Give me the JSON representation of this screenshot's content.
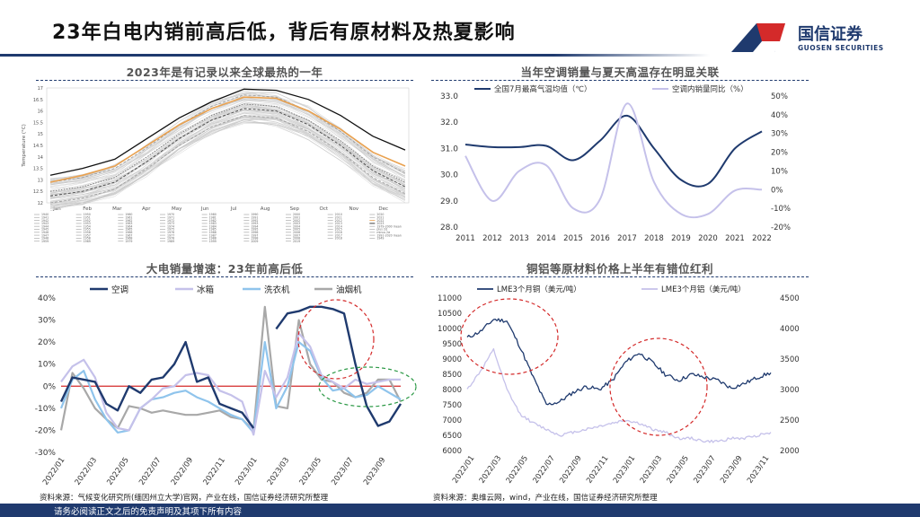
{
  "title": "23年白电内销前高后低，背后有原材料及热夏影响",
  "logo": {
    "cn": "国信证券",
    "en": "GUOSEN SECURITIES"
  },
  "sections": {
    "tl": "2023年是有记录以来全球最热的一年",
    "tr": "当年空调销量与夏天高温存在明显关联",
    "bl": "大电销量增速：23年前高后低",
    "br": "铜铝等原材料价格上半年有错位红利"
  },
  "sources": {
    "left": "资料来源：气候变化研究所(缅因州立大学)官网，产业在线，国信证券经济研究所整理",
    "right": "资料来源：奥维云网，wind，产业在线，国信证券经济研究所整理"
  },
  "footer": "请务必阅读正文之后的免责声明及其项下所有内容",
  "colors": {
    "navy": "#1f3a6e",
    "lavender": "#c5c1ea",
    "skyblue": "#8fc4ec",
    "gray": "#a8a8a8",
    "red": "#d42a2a",
    "green": "#2e9a48",
    "orange": "#e9a14f"
  },
  "chart_data": [
    {
      "id": "temperature",
      "type": "line",
      "title": "2023年是有记录以来全球最热的一年",
      "ylabel": "Temperature (°C)",
      "y_ticks": [
        "17",
        "16.5",
        "16",
        "15.5",
        "15",
        "14.5",
        "14",
        "13.5",
        "13",
        "12.5",
        "12"
      ],
      "ylim": [
        12,
        17
      ],
      "x_ticks": [
        "Jan",
        "Feb",
        "Mar",
        "Apr",
        "May",
        "Jun",
        "Jul",
        "Aug",
        "Sep",
        "Oct",
        "Nov",
        "Dec"
      ],
      "legend_years": [
        "1940",
        "1950",
        "1960",
        "1970",
        "1980",
        "1990",
        "2000",
        "2010",
        "2020",
        "1941",
        "1951",
        "1961",
        "1971",
        "1981",
        "1991",
        "2001",
        "2011",
        "2021",
        "1942",
        "1952",
        "1962",
        "1972",
        "1982",
        "1992",
        "2002",
        "2012",
        "2022",
        "1943",
        "1953",
        "1963",
        "1973",
        "1983",
        "1993",
        "2003",
        "2013",
        "2023",
        "1944",
        "1954",
        "1964",
        "1974",
        "1984",
        "1994",
        "2004",
        "2014",
        "1979-2000 mean",
        "1945",
        "1955",
        "1965",
        "1975",
        "1985",
        "1995",
        "2005",
        "2015",
        "plus 2σ",
        "1946",
        "1956",
        "1966",
        "1976",
        "1986",
        "1996",
        "2006",
        "2016",
        "minus 2σ",
        "1947",
        "1957",
        "1967",
        "1977",
        "1987",
        "1997",
        "2007",
        "2017",
        "1991-2020 mean",
        "1948",
        "1958",
        "1968",
        "1978",
        "1988",
        "1998",
        "2008",
        "2018",
        "1949",
        "1959",
        "1969",
        "1979",
        "1989",
        "1999",
        "2009",
        "2019"
      ],
      "series": [
        {
          "name": "2023",
          "color": "#111111",
          "values": [
            13.2,
            13.5,
            13.9,
            14.8,
            15.7,
            16.4,
            16.95,
            16.9,
            16.5,
            15.8,
            14.9,
            14.3
          ]
        },
        {
          "name": "2022",
          "color": "#e9a14f",
          "values": [
            12.9,
            13.2,
            13.6,
            14.5,
            15.4,
            16.1,
            16.6,
            16.55,
            16.0,
            15.2,
            14.2,
            13.6
          ]
        },
        {
          "name": "1979-2000 mean",
          "color": "#444444",
          "values": [
            12.3,
            12.5,
            12.9,
            13.8,
            14.8,
            15.6,
            16.1,
            16.0,
            15.4,
            14.5,
            13.4,
            12.7
          ]
        },
        {
          "name": "1991-2020 mean",
          "color": "#777777",
          "values": [
            12.5,
            12.7,
            13.1,
            14.0,
            15.0,
            15.8,
            16.3,
            16.2,
            15.6,
            14.7,
            13.6,
            12.9
          ]
        },
        {
          "name": "plus 2σ",
          "color": "#999999",
          "values": [
            12.9,
            13.1,
            13.5,
            14.4,
            15.4,
            16.2,
            16.7,
            16.6,
            16.0,
            15.1,
            14.0,
            13.3
          ]
        },
        {
          "name": "minus 2σ",
          "color": "#999999",
          "values": [
            12.0,
            12.2,
            12.6,
            13.5,
            14.5,
            15.3,
            15.8,
            15.7,
            15.1,
            14.2,
            13.1,
            12.4
          ]
        }
      ]
    },
    {
      "id": "ac_vs_temp",
      "type": "line",
      "title": "当年空调销量与夏天高温存在明显关联",
      "categories": [
        "2011",
        "2012",
        "2013",
        "2014",
        "2015",
        "2016",
        "2017",
        "2018",
        "2019",
        "2020",
        "2021",
        "2022"
      ],
      "y_left_ticks": [
        "33.0",
        "32.0",
        "31.0",
        "30.0",
        "29.0",
        "28.0"
      ],
      "y_left_lim": [
        28,
        33
      ],
      "y_right_ticks": [
        "50%",
        "40%",
        "30%",
        "20%",
        "10%",
        "0%",
        "-10%",
        "-20%"
      ],
      "y_right_lim": [
        -20,
        50
      ],
      "series": [
        {
          "name": "全国7月最高气温均值（℃）",
          "axis": "left",
          "color": "#1f3a6e",
          "values": [
            31.15,
            31.05,
            31.05,
            31.1,
            30.55,
            31.3,
            32.25,
            31.0,
            29.8,
            29.65,
            31.0,
            31.65
          ]
        },
        {
          "name": "空调内销量同比（%）",
          "axis": "right",
          "color": "#c5c1ea",
          "values": [
            18,
            -6,
            10,
            13,
            -10,
            -5,
            46,
            4,
            -13,
            -13,
            -0.5,
            0
          ]
        }
      ]
    },
    {
      "id": "appliance_growth",
      "type": "line",
      "title": "大电销量增速：23年前高后低",
      "x_ticks": [
        "2022/01",
        "2022/03",
        "2022/05",
        "2022/07",
        "2022/09",
        "2022/11",
        "2023/01",
        "2023/03",
        "2023/05",
        "2023/07",
        "2023/09"
      ],
      "y_ticks": [
        "40%",
        "30%",
        "20%",
        "10%",
        "0%",
        "-10%",
        "-20%",
        "-30%"
      ],
      "ylim": [
        -30,
        40
      ],
      "series": [
        {
          "name": "空调",
          "color": "#1f3a6e",
          "values": [
            -7,
            4,
            3,
            2,
            -8,
            -11,
            0,
            -3,
            3,
            4,
            10,
            20,
            2,
            4,
            -8,
            -10,
            -12,
            -19,
            null,
            26,
            33,
            34,
            36,
            36,
            35,
            33,
            10,
            -9,
            -18,
            -16,
            -8
          ]
        },
        {
          "name": "冰箱",
          "color": "#c5c1ea",
          "values": [
            2,
            9,
            12,
            4,
            -12,
            -19,
            -20,
            -10,
            -6,
            -1,
            0,
            5,
            6,
            5,
            -2,
            -4,
            -7,
            -22,
            7,
            -5,
            4,
            24,
            18,
            5,
            2,
            -1,
            3,
            1,
            2,
            3,
            3
          ]
        },
        {
          "name": "洗衣机",
          "color": "#8fc4ec",
          "values": [
            -10,
            3,
            7,
            -6,
            -15,
            -21,
            -20,
            -10,
            -6,
            -5,
            -3,
            -2,
            -5,
            -7,
            -10,
            -13,
            -15,
            -21,
            20,
            -10,
            0,
            20,
            16,
            4,
            -2,
            -1,
            -5,
            -4,
            0,
            -3,
            -6
          ]
        },
        {
          "name": "油烟机",
          "color": "#a8a8a8",
          "values": [
            -20,
            6,
            -1,
            -10,
            -15,
            -19,
            -9,
            -10,
            -12,
            -11,
            -12,
            -13,
            -13,
            -12,
            -11,
            -14,
            -15,
            -20,
            36,
            -9,
            -10,
            30,
            10,
            3,
            2,
            -3,
            -5,
            -3,
            3,
            3,
            -7
          ]
        }
      ],
      "annotations": [
        "red dashed ellipse around 2023/03-2023/07 peak",
        "green dashed ellipse around 2023/07-2023/09"
      ]
    },
    {
      "id": "metal_prices",
      "type": "line",
      "title": "铜铝等原材料价格上半年有错位红利",
      "x_ticks": [
        "2022/01",
        "2022/03",
        "2022/05",
        "2022/07",
        "2022/09",
        "2022/11",
        "2023/01",
        "2023/03",
        "2023/05",
        "2023/07",
        "2023/09",
        "2023/11"
      ],
      "y_left_ticks": [
        "11000",
        "10500",
        "10000",
        "9500",
        "9000",
        "8500",
        "8000",
        "7500",
        "7000",
        "6500",
        "6000"
      ],
      "y_left_lim": [
        6000,
        11000
      ],
      "y_right_ticks": [
        "4500",
        "4000",
        "3500",
        "3000",
        "2500",
        "2000"
      ],
      "y_right_lim": [
        2000,
        4500
      ],
      "series": [
        {
          "name": "LME3个月铜（美元/吨）",
          "axis": "left",
          "color": "#1f3a6e",
          "values": [
            9700,
            9900,
            10300,
            10250,
            9400,
            8400,
            7500,
            7600,
            7900,
            8100,
            8000,
            8300,
            8900,
            9200,
            8900,
            8500,
            8300,
            8500,
            8400,
            8300,
            8050,
            8200,
            8400,
            8550
          ]
        },
        {
          "name": "LME3个月铝（美元/吨）",
          "axis": "right",
          "color": "#c5c1ea",
          "values": [
            3000,
            3300,
            3650,
            3000,
            2600,
            2450,
            2350,
            2250,
            2300,
            2350,
            2400,
            2450,
            2500,
            2450,
            2350,
            2300,
            2200,
            2200,
            2150,
            2150,
            2200,
            2200,
            2250,
            2300
          ]
        }
      ],
      "annotations": [
        "red dashed ellipse around 2022/01-2022/05",
        "red dashed ellipse around 2023/01-2023/05"
      ]
    }
  ]
}
